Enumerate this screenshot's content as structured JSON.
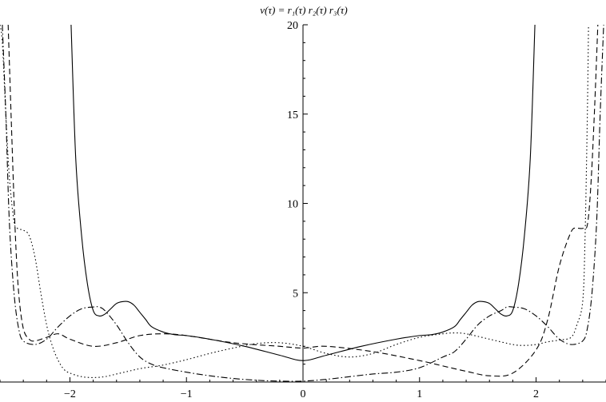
{
  "chart_data": {
    "type": "line",
    "title": "v(τ) = r₁(τ) r₂(τ) r₃(τ)",
    "xlabel": "",
    "ylabel": "",
    "xlim": [
      -2.6,
      2.6
    ],
    "ylim": [
      0,
      20
    ],
    "grid": false,
    "x_ticks": [
      -2,
      -1,
      0,
      1,
      2
    ],
    "x_tick_labels": [
      "−2",
      "−1",
      "0",
      "1",
      "2"
    ],
    "y_ticks": [
      5,
      10,
      15,
      20
    ],
    "y_tick_labels": [
      "5",
      "10",
      "15",
      "20"
    ],
    "series": [
      {
        "style": "solid",
        "x": [
          -1.99,
          -1.95,
          -1.9,
          -1.85,
          -1.8,
          -1.75,
          -1.7,
          -1.65,
          -1.6,
          -1.55,
          -1.5,
          -1.45,
          -1.4,
          -1.35,
          -1.3,
          -1.2,
          -1.1,
          -1.0,
          -0.8,
          -0.5,
          -0.2,
          0.0,
          0.2,
          0.5,
          0.8,
          1.0,
          1.1,
          1.2,
          1.3,
          1.35,
          1.4,
          1.45,
          1.5,
          1.55,
          1.6,
          1.65,
          1.7,
          1.75,
          1.8,
          1.85,
          1.9,
          1.95,
          1.99
        ],
        "y": [
          20,
          12.5,
          8.2,
          5.5,
          4.0,
          3.7,
          3.8,
          4.1,
          4.4,
          4.5,
          4.5,
          4.3,
          3.9,
          3.5,
          3.1,
          2.8,
          2.65,
          2.6,
          2.4,
          2.0,
          1.5,
          1.2,
          1.5,
          2.0,
          2.4,
          2.6,
          2.65,
          2.8,
          3.1,
          3.5,
          3.9,
          4.3,
          4.5,
          4.5,
          4.4,
          4.1,
          3.8,
          3.7,
          4.0,
          5.5,
          8.2,
          12.5,
          20
        ]
      },
      {
        "style": "dashed",
        "x": [
          -2.53,
          -2.5,
          -2.47,
          -2.44,
          -2.4,
          -2.35,
          -2.3,
          -2.2,
          -2.1,
          -2.0,
          -1.8,
          -1.6,
          -1.4,
          -1.2,
          -1.0,
          -0.6,
          -0.2,
          0.0,
          0.2,
          0.6,
          1.0,
          1.2,
          1.4,
          1.6,
          1.8,
          2.0,
          2.1,
          2.2,
          2.3,
          2.35,
          2.4,
          2.44,
          2.47,
          2.5,
          2.53
        ],
        "y": [
          20,
          14,
          8.5,
          5.0,
          3.0,
          2.4,
          2.3,
          2.5,
          2.7,
          2.4,
          2.0,
          2.2,
          2.6,
          2.7,
          2.6,
          2.2,
          2.0,
          1.9,
          2.0,
          1.7,
          1.2,
          0.9,
          0.6,
          0.35,
          0.5,
          1.8,
          3.5,
          6.5,
          8.4,
          8.6,
          8.6,
          8.8,
          11.0,
          15.0,
          20
        ]
      },
      {
        "style": "dotted",
        "x": [
          -2.6,
          -2.58,
          -2.55,
          -2.52,
          -2.48,
          -2.45,
          -2.4,
          -2.35,
          -2.3,
          -2.25,
          -2.2,
          -2.15,
          -2.1,
          -2.05,
          -2.0,
          -1.9,
          -1.8,
          -1.7,
          -1.6,
          -1.5,
          -1.4,
          -1.3,
          -1.2,
          -1.0,
          -0.8,
          -0.6,
          -0.4,
          -0.2,
          0.0,
          0.2,
          0.4,
          0.6,
          0.8,
          1.0,
          1.2,
          1.3,
          1.4,
          1.6,
          1.8,
          1.9,
          2.0,
          2.1,
          2.2,
          2.3,
          2.35,
          2.4,
          2.42,
          2.44,
          2.45
        ],
        "y": [
          20,
          19,
          15,
          11.5,
          9.0,
          8.6,
          8.5,
          8.2,
          7.0,
          5.0,
          3.2,
          2.0,
          1.2,
          0.7,
          0.5,
          0.3,
          0.25,
          0.3,
          0.45,
          0.6,
          0.75,
          0.85,
          0.95,
          1.25,
          1.6,
          1.9,
          2.15,
          2.2,
          2.0,
          1.6,
          1.4,
          1.6,
          2.1,
          2.5,
          2.7,
          2.75,
          2.7,
          2.4,
          2.1,
          2.05,
          2.1,
          2.25,
          2.35,
          2.5,
          3.2,
          4.5,
          8.0,
          15.0,
          20
        ]
      },
      {
        "style": "dashdot",
        "x": [
          -2.58,
          -2.55,
          -2.52,
          -2.48,
          -2.44,
          -2.4,
          -2.3,
          -2.2,
          -2.1,
          -2.0,
          -1.9,
          -1.8,
          -1.75,
          -1.7,
          -1.6,
          -1.5,
          -1.4,
          -1.3,
          -1.2,
          -1.0,
          -0.8,
          -0.6,
          -0.4,
          -0.2,
          0.0,
          0.2,
          0.4,
          0.6,
          0.8,
          1.0,
          1.2,
          1.3,
          1.4,
          1.5,
          1.6,
          1.7,
          1.75,
          1.8,
          1.9,
          2.0,
          2.1,
          2.2,
          2.3,
          2.4,
          2.44,
          2.48,
          2.52,
          2.55,
          2.58
        ],
        "y": [
          20,
          15.0,
          9.0,
          5.0,
          3.0,
          2.3,
          2.1,
          2.4,
          3.1,
          3.7,
          4.1,
          4.2,
          4.2,
          4.0,
          3.2,
          2.2,
          1.4,
          1.0,
          0.8,
          0.55,
          0.35,
          0.2,
          0.1,
          0.05,
          0.05,
          0.15,
          0.3,
          0.45,
          0.55,
          0.8,
          1.4,
          1.7,
          2.4,
          3.2,
          3.7,
          4.0,
          4.2,
          4.2,
          4.1,
          3.7,
          3.1,
          2.4,
          2.1,
          2.3,
          3.0,
          5.0,
          9.0,
          15.0,
          20
        ]
      }
    ]
  }
}
